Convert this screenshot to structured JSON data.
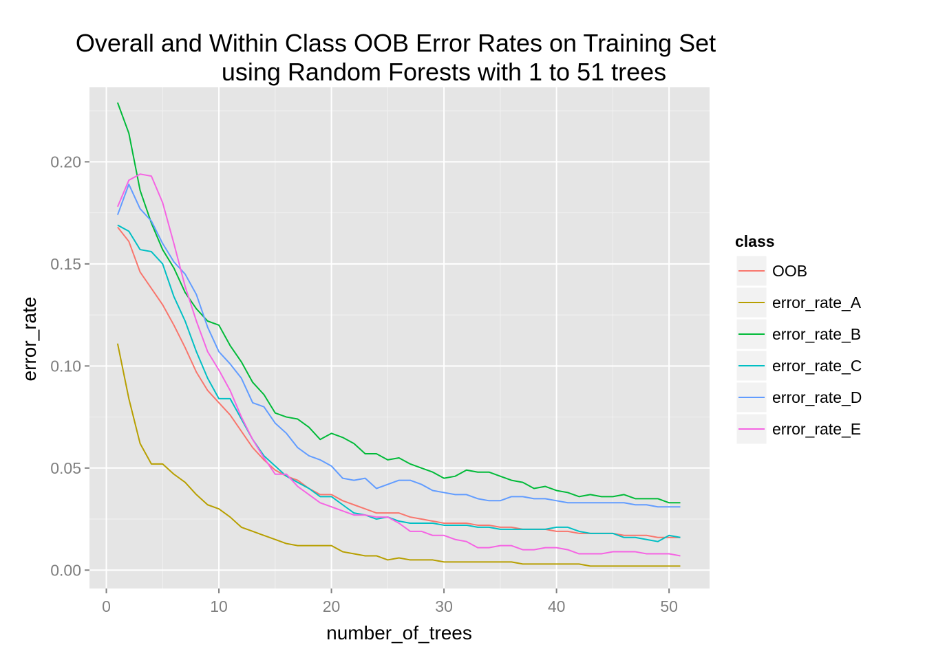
{
  "chart_data": {
    "type": "line",
    "title_lines": [
      "Overall and Within Class OOB Error Rates on Training Set",
      "using Random Forests with 1 to 51 trees"
    ],
    "xlabel": "number_of_trees",
    "ylabel": "error_rate",
    "xlim": [
      -1.5,
      53.6
    ],
    "ylim": [
      -0.009,
      0.2365
    ],
    "x_ticks": [
      0,
      10,
      20,
      30,
      40,
      50
    ],
    "x_tick_labels": [
      "0",
      "10",
      "20",
      "30",
      "40",
      "50"
    ],
    "y_ticks": [
      0.0,
      0.05,
      0.1,
      0.15,
      0.2
    ],
    "y_tick_labels": [
      "0.00",
      "0.05",
      "0.10",
      "0.15",
      "0.20"
    ],
    "grid": true,
    "legend": {
      "title": "class",
      "position": "right"
    },
    "panel_background": "#E5E5E5",
    "x": [
      1,
      2,
      3,
      4,
      5,
      6,
      7,
      8,
      9,
      10,
      11,
      12,
      13,
      14,
      15,
      16,
      17,
      18,
      19,
      20,
      21,
      22,
      23,
      24,
      25,
      26,
      27,
      28,
      29,
      30,
      31,
      32,
      33,
      34,
      35,
      36,
      37,
      38,
      39,
      40,
      41,
      42,
      43,
      44,
      45,
      46,
      47,
      48,
      49,
      50,
      51
    ],
    "series": [
      {
        "name": "OOB",
        "color": "#F8766D",
        "values": [
          0.168,
          0.161,
          0.146,
          0.138,
          0.13,
          0.12,
          0.109,
          0.097,
          0.088,
          0.082,
          0.076,
          0.068,
          0.06,
          0.054,
          0.049,
          0.046,
          0.044,
          0.04,
          0.037,
          0.037,
          0.034,
          0.032,
          0.03,
          0.028,
          0.028,
          0.028,
          0.026,
          0.025,
          0.024,
          0.023,
          0.023,
          0.023,
          0.022,
          0.022,
          0.021,
          0.021,
          0.02,
          0.02,
          0.02,
          0.019,
          0.019,
          0.018,
          0.018,
          0.018,
          0.018,
          0.017,
          0.017,
          0.017,
          0.016,
          0.016,
          0.016
        ]
      },
      {
        "name": "error_rate_A",
        "color": "#B79F00",
        "values": [
          0.111,
          0.084,
          0.062,
          0.052,
          0.052,
          0.047,
          0.043,
          0.037,
          0.032,
          0.03,
          0.026,
          0.021,
          0.019,
          0.017,
          0.015,
          0.013,
          0.012,
          0.012,
          0.012,
          0.012,
          0.009,
          0.008,
          0.007,
          0.007,
          0.005,
          0.006,
          0.005,
          0.005,
          0.005,
          0.004,
          0.004,
          0.004,
          0.004,
          0.004,
          0.004,
          0.004,
          0.003,
          0.003,
          0.003,
          0.003,
          0.003,
          0.003,
          0.002,
          0.002,
          0.002,
          0.002,
          0.002,
          0.002,
          0.002,
          0.002,
          0.002
        ]
      },
      {
        "name": "error_rate_B",
        "color": "#00BA38",
        "values": [
          0.229,
          0.214,
          0.186,
          0.17,
          0.157,
          0.148,
          0.136,
          0.128,
          0.122,
          0.12,
          0.11,
          0.102,
          0.092,
          0.086,
          0.077,
          0.075,
          0.074,
          0.07,
          0.064,
          0.067,
          0.065,
          0.062,
          0.057,
          0.057,
          0.054,
          0.055,
          0.052,
          0.05,
          0.048,
          0.045,
          0.046,
          0.049,
          0.048,
          0.048,
          0.046,
          0.044,
          0.043,
          0.04,
          0.041,
          0.039,
          0.038,
          0.036,
          0.037,
          0.036,
          0.036,
          0.037,
          0.035,
          0.035,
          0.035,
          0.033,
          0.033
        ]
      },
      {
        "name": "error_rate_C",
        "color": "#00BFC4",
        "values": [
          0.169,
          0.166,
          0.157,
          0.156,
          0.15,
          0.134,
          0.122,
          0.107,
          0.094,
          0.084,
          0.084,
          0.074,
          0.064,
          0.056,
          0.051,
          0.046,
          0.043,
          0.04,
          0.036,
          0.036,
          0.032,
          0.028,
          0.027,
          0.025,
          0.026,
          0.024,
          0.023,
          0.023,
          0.023,
          0.022,
          0.022,
          0.022,
          0.021,
          0.021,
          0.02,
          0.02,
          0.02,
          0.02,
          0.02,
          0.021,
          0.021,
          0.019,
          0.018,
          0.018,
          0.018,
          0.016,
          0.016,
          0.015,
          0.014,
          0.017,
          0.016
        ]
      },
      {
        "name": "error_rate_D",
        "color": "#619CFF",
        "values": [
          0.174,
          0.189,
          0.177,
          0.171,
          0.16,
          0.151,
          0.145,
          0.135,
          0.119,
          0.107,
          0.101,
          0.094,
          0.082,
          0.08,
          0.072,
          0.067,
          0.06,
          0.056,
          0.054,
          0.051,
          0.045,
          0.044,
          0.045,
          0.04,
          0.042,
          0.044,
          0.044,
          0.042,
          0.039,
          0.038,
          0.037,
          0.037,
          0.035,
          0.034,
          0.034,
          0.036,
          0.036,
          0.035,
          0.035,
          0.034,
          0.033,
          0.033,
          0.033,
          0.033,
          0.033,
          0.033,
          0.032,
          0.032,
          0.031,
          0.031,
          0.031
        ]
      },
      {
        "name": "error_rate_E",
        "color": "#F564E3",
        "values": [
          0.178,
          0.191,
          0.194,
          0.193,
          0.18,
          0.16,
          0.139,
          0.122,
          0.107,
          0.098,
          0.088,
          0.075,
          0.064,
          0.055,
          0.047,
          0.047,
          0.041,
          0.037,
          0.033,
          0.031,
          0.029,
          0.027,
          0.027,
          0.026,
          0.026,
          0.023,
          0.019,
          0.019,
          0.017,
          0.017,
          0.015,
          0.014,
          0.011,
          0.011,
          0.012,
          0.012,
          0.01,
          0.01,
          0.011,
          0.011,
          0.01,
          0.008,
          0.008,
          0.008,
          0.009,
          0.009,
          0.009,
          0.008,
          0.008,
          0.008,
          0.007
        ]
      }
    ]
  }
}
